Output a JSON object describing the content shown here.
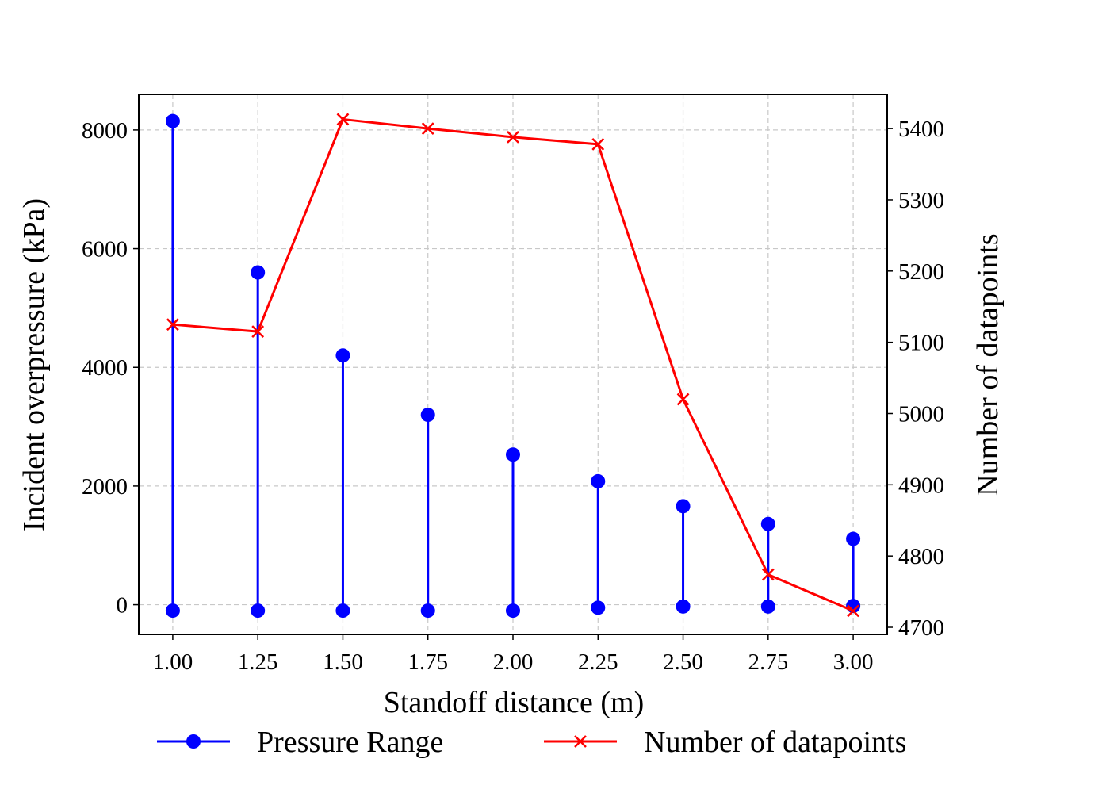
{
  "chart_data": {
    "type": "line",
    "title": "",
    "xlabel": "Standoff distance (m)",
    "ylabel_left": "Incident overpressure (kPa)",
    "ylabel_right": "Number of datapoints",
    "x": [
      1.0,
      1.25,
      1.5,
      1.75,
      2.0,
      2.25,
      2.5,
      2.75,
      3.0
    ],
    "x_tick_labels": [
      "1.00",
      "1.25",
      "1.50",
      "1.75",
      "2.00",
      "2.25",
      "2.50",
      "2.75",
      "3.00"
    ],
    "xlim": [
      0.9,
      3.1
    ],
    "ylim_left": [
      -500,
      8600
    ],
    "left_ticks": [
      0,
      2000,
      4000,
      6000,
      8000
    ],
    "left_tick_labels": [
      "0",
      "2000",
      "4000",
      "6000",
      "8000"
    ],
    "ylim_right": [
      4690,
      5448
    ],
    "right_ticks": [
      4700,
      4800,
      4900,
      5000,
      5100,
      5200,
      5300,
      5400
    ],
    "right_tick_labels": [
      "4700",
      "4800",
      "4900",
      "5000",
      "5100",
      "5200",
      "5300",
      "5400"
    ],
    "grid": true,
    "legend_position": "bottom-center",
    "series": [
      {
        "name": "Pressure Range",
        "axis": "left",
        "style": "range-stem",
        "color": "#0000ff",
        "marker": "circle",
        "min": [
          -100,
          -100,
          -100,
          -100,
          -100,
          -50,
          -30,
          -30,
          -20
        ],
        "max": [
          8150,
          5600,
          4200,
          3200,
          2530,
          2080,
          1660,
          1360,
          1110
        ]
      },
      {
        "name": "Number of datapoints",
        "axis": "right",
        "style": "line",
        "color": "#ff0000",
        "marker": "x",
        "values": [
          5125,
          5115,
          5413,
          5400,
          5388,
          5378,
          5020,
          4774,
          4723
        ]
      }
    ]
  }
}
